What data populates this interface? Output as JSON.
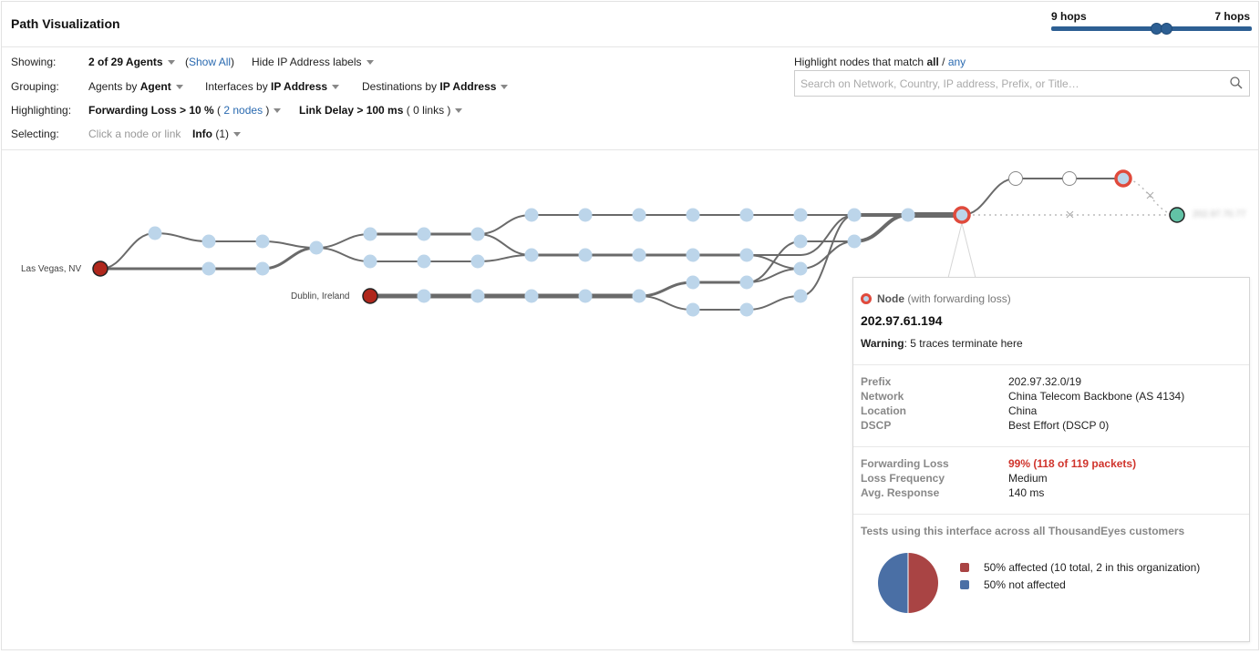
{
  "header": {
    "title": "Path Visualization",
    "hops_min_label": "9 hops",
    "hops_max_label": "7 hops",
    "hops_slider_color": "#2d5f93"
  },
  "controls": {
    "showing": {
      "label": "Showing:",
      "agents_value": "2 of 29 Agents",
      "show_all": "Show All",
      "hide_ip": "Hide IP Address labels"
    },
    "grouping": {
      "label": "Grouping:",
      "agents_prefix": "Agents by",
      "agents_value": "Agent",
      "interfaces_prefix": "Interfaces by",
      "interfaces_value": "IP Address",
      "destinations_prefix": "Destinations by",
      "destinations_value": "IP Address"
    },
    "highlighting": {
      "label": "Highlighting:",
      "loss_value": "Forwarding Loss > 10 %",
      "loss_count": "2 nodes",
      "delay_value": "Link Delay > 100 ms",
      "delay_count": "0 links"
    },
    "selecting": {
      "label": "Selecting:",
      "hint": "Click a node or link",
      "info_value": "Info",
      "info_count": "(1)"
    }
  },
  "highlight_match": {
    "prefix": "Highlight nodes that match",
    "all": "all",
    "separator": "/",
    "any": "any",
    "search_placeholder": "Search on Network, Country, IP address, Prefix, or Title…"
  },
  "graph": {
    "agents": [
      "Las Vegas, NV",
      "Dublin, Ireland"
    ],
    "destination_label": "202.97.70.77",
    "colors": {
      "agent": "#b0271c",
      "hop": "#bcd5ea",
      "loss_ring": "#e04a3c",
      "destination": "#62c2a6",
      "link": "#6a6a6a"
    }
  },
  "info": {
    "node_type": "Node",
    "node_type_detail": "(with forwarding loss)",
    "ip": "202.97.61.194",
    "warning_label": "Warning",
    "warning_text": ": 5 traces terminate here",
    "details": [
      {
        "key": "Prefix",
        "value": "202.97.32.0/19"
      },
      {
        "key": "Network",
        "value": "China Telecom Backbone (AS 4134)"
      },
      {
        "key": "Location",
        "value": "China"
      },
      {
        "key": "DSCP",
        "value": "Best Effort (DSCP 0)"
      }
    ],
    "metrics": [
      {
        "key": "Forwarding Loss",
        "value": "99% (118 of 119 packets)"
      },
      {
        "key": "Loss Frequency",
        "value": "Medium"
      },
      {
        "key": "Avg. Response",
        "value": "140 ms"
      }
    ],
    "tests_title": "Tests using this interface across all ThousandEyes customers",
    "pie": {
      "slices": [
        {
          "label": "50% affected (10 total, 2 in this organization)",
          "value": 50,
          "color": "#a94444"
        },
        {
          "label": "50% not affected",
          "value": 50,
          "color": "#4a6fa5"
        }
      ]
    }
  }
}
